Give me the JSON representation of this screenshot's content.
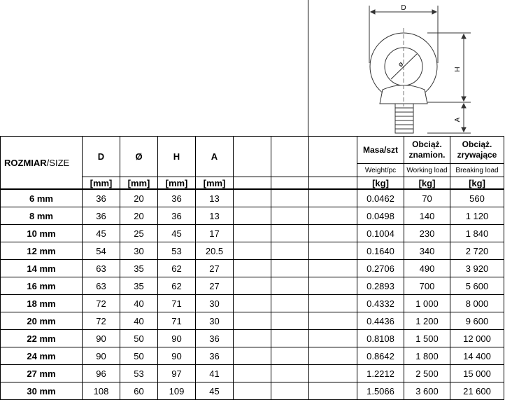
{
  "drawing": {
    "labels": {
      "d": "D",
      "diameter": "ø",
      "h": "H",
      "a": "A"
    }
  },
  "table": {
    "header": {
      "size_bold": "ROZMIAR",
      "size_rest": "/SIZE",
      "columns": [
        "D",
        "Ø",
        "H",
        "A"
      ],
      "units_mm": [
        "[mm]",
        "[mm]",
        "[mm]",
        "[mm]"
      ],
      "mass": "Masa/szt",
      "mass_en": "Weight/pc",
      "working": [
        "Obciąż.",
        "znamion."
      ],
      "working_en": "Working load",
      "breaking": [
        "Obciąż.",
        "zrywające"
      ],
      "breaking_en": "Breaking load",
      "units_kg": [
        "[kg]",
        "[kg]",
        "[kg]"
      ]
    },
    "rows": [
      [
        "6 mm",
        "36",
        "20",
        "36",
        "13",
        "0.0462",
        "70",
        "560"
      ],
      [
        "8 mm",
        "36",
        "20",
        "36",
        "13",
        "0.0498",
        "140",
        "1 120"
      ],
      [
        "10 mm",
        "45",
        "25",
        "45",
        "17",
        "0.1004",
        "230",
        "1 840"
      ],
      [
        "12 mm",
        "54",
        "30",
        "53",
        "20.5",
        "0.1640",
        "340",
        "2 720"
      ],
      [
        "14 mm",
        "63",
        "35",
        "62",
        "27",
        "0.2706",
        "490",
        "3 920"
      ],
      [
        "16 mm",
        "63",
        "35",
        "62",
        "27",
        "0.2893",
        "700",
        "5 600"
      ],
      [
        "18 mm",
        "72",
        "40",
        "71",
        "30",
        "0.4332",
        "1 000",
        "8 000"
      ],
      [
        "20 mm",
        "72",
        "40",
        "71",
        "30",
        "0.4436",
        "1 200",
        "9 600"
      ],
      [
        "22 mm",
        "90",
        "50",
        "90",
        "36",
        "0.8108",
        "1 500",
        "12 000"
      ],
      [
        "24 mm",
        "90",
        "50",
        "90",
        "36",
        "0.8642",
        "1 800",
        "14 400"
      ],
      [
        "27 mm",
        "96",
        "53",
        "97",
        "41",
        "1.2212",
        "2 500",
        "15 000"
      ],
      [
        "30 mm",
        "108",
        "60",
        "109",
        "45",
        "1.5066",
        "3 600",
        "21 600"
      ]
    ]
  }
}
